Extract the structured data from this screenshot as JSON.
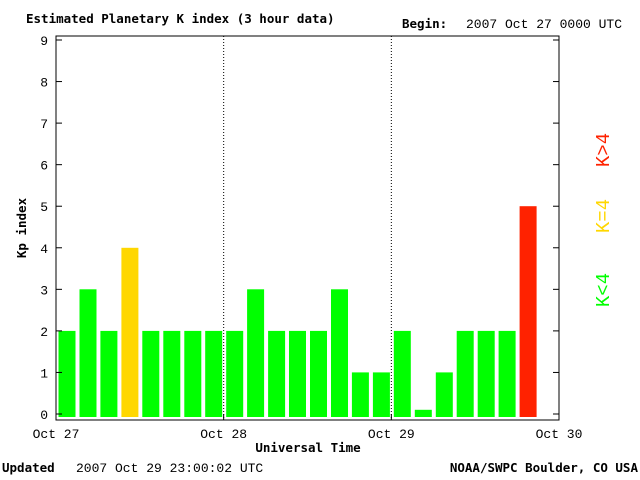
{
  "header": {
    "title": "Estimated Planetary K index (3 hour data)",
    "begin_label": "Begin:",
    "begin_value": "2007 Oct 27 0000 UTC"
  },
  "footer": {
    "updated_label": "Updated",
    "updated_value": "2007 Oct 29 23:00:02 UTC",
    "source": "NOAA/SWPC Boulder, CO USA"
  },
  "legend": {
    "low": "K<4",
    "equal": "K=4",
    "high": "K>4"
  },
  "colors": {
    "low": "#00ff00",
    "equal": "#ffd700",
    "high": "#ff2200"
  },
  "chart_data": {
    "type": "bar",
    "title": "Estimated Planetary K index (3 hour data)",
    "xlabel": "Universal Time",
    "ylabel": "Kp index",
    "ylim": [
      0,
      9
    ],
    "yticks": [
      "0",
      "1",
      "2",
      "3",
      "4",
      "5",
      "6",
      "7",
      "8",
      "9"
    ],
    "xticks": [
      "Oct 27",
      "Oct 28",
      "Oct 29",
      "Oct 30"
    ],
    "values": [
      2,
      3,
      2,
      4,
      2,
      2,
      2,
      2,
      2,
      3,
      2,
      2,
      2,
      3,
      1,
      1,
      2,
      0,
      1,
      2,
      2,
      2,
      5
    ],
    "grid": "vertical dotted lines at day boundaries"
  }
}
